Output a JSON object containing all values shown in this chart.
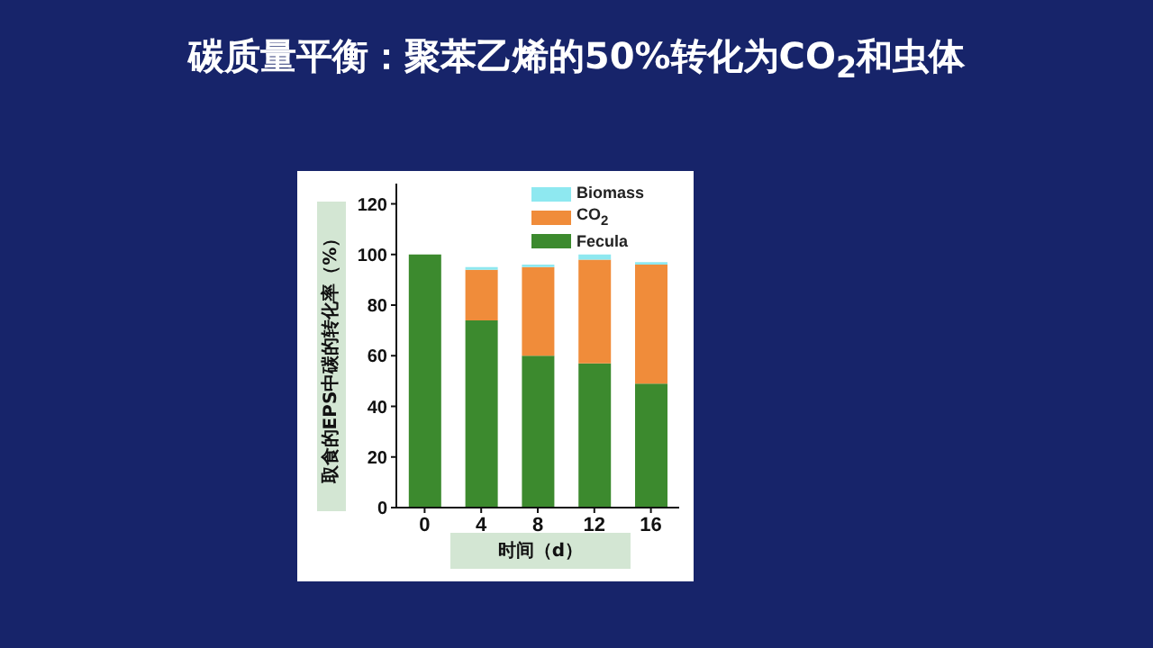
{
  "chart_data": {
    "type": "bar",
    "title": "碳质量平衡：聚苯乙烯的50%转化为CO$_{2}$和虫体",
    "xlabel": "时间（d）",
    "ylabel": "取食的EPS中碳的转化率（%）",
    "categories": [
      "0",
      "4",
      "8",
      "12",
      "16"
    ],
    "stacked": true,
    "ylim": [
      0,
      128
    ],
    "yticks": [
      0,
      20,
      40,
      60,
      80,
      100,
      120
    ],
    "legend": "top",
    "series": [
      {
        "name": "Fecula",
        "color": "#3c8a2e",
        "values": [
          100,
          74,
          60,
          57,
          49
        ]
      },
      {
        "name": "CO$_{2}$",
        "color": "#f08c3a",
        "values": [
          0,
          20,
          35,
          41,
          47
        ]
      },
      {
        "name": "Biomass",
        "color": "#8ee8f0",
        "values": [
          0,
          1,
          1,
          2,
          1
        ]
      }
    ]
  }
}
